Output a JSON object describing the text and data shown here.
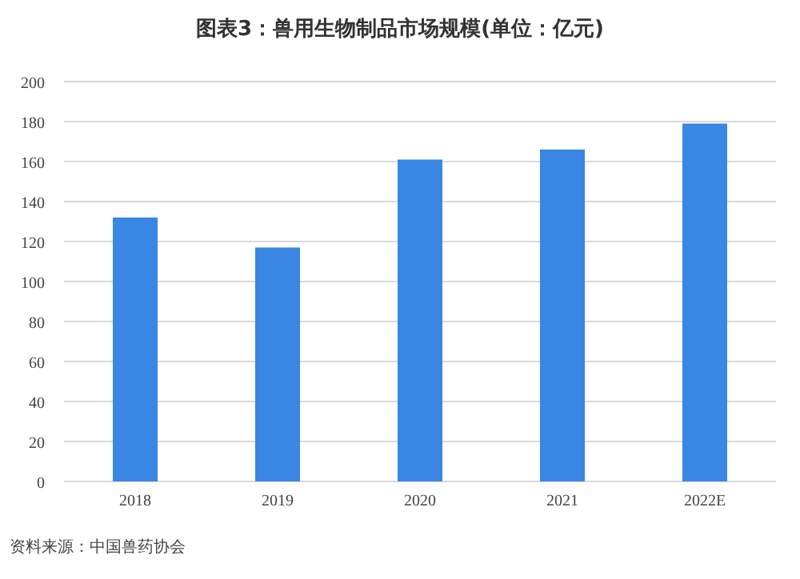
{
  "chart_data": {
    "type": "bar",
    "title": "图表3：兽用生物制品市场规模(单位：亿元)",
    "categories": [
      "2018",
      "2019",
      "2020",
      "2021",
      "2022E"
    ],
    "values": [
      132,
      117,
      161,
      166,
      179
    ],
    "color": "#3a86e4",
    "ylim": [
      0,
      200
    ],
    "yticks": [
      0,
      20,
      40,
      60,
      80,
      100,
      120,
      140,
      160,
      180,
      200
    ],
    "grid": "y",
    "annotations": [
      "资料来源：中国兽药协会"
    ]
  }
}
